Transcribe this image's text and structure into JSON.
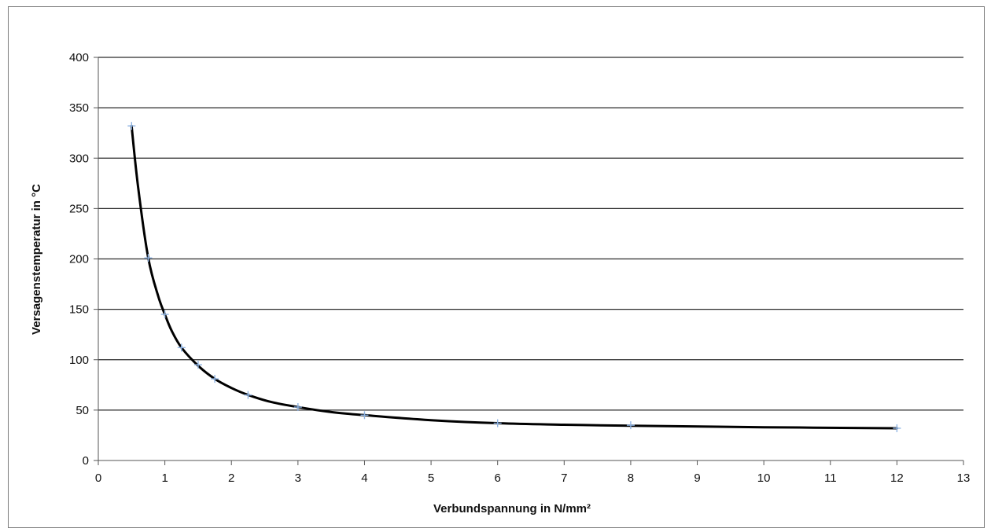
{
  "chart_data": {
    "type": "scatter",
    "title": "",
    "xlabel": "Verbundspannung in N/mm²",
    "ylabel": "Versagenstemperatur in °C",
    "xlim": [
      0,
      13
    ],
    "ylim": [
      0,
      400
    ],
    "x_ticks": [
      0,
      1,
      2,
      3,
      4,
      5,
      6,
      7,
      8,
      9,
      10,
      11,
      12,
      13
    ],
    "y_ticks": [
      0,
      50,
      100,
      150,
      200,
      250,
      300,
      350,
      400
    ],
    "grid": "horizontal",
    "legend": "none",
    "series": [
      {
        "points": [
          {
            "x": 0.5,
            "y": 332
          },
          {
            "x": 0.75,
            "y": 201
          },
          {
            "x": 1.0,
            "y": 145
          },
          {
            "x": 1.25,
            "y": 112
          },
          {
            "x": 1.5,
            "y": 95
          },
          {
            "x": 1.75,
            "y": 81
          },
          {
            "x": 2.25,
            "y": 65
          },
          {
            "x": 3.0,
            "y": 53
          },
          {
            "x": 4.0,
            "y": 45
          },
          {
            "x": 6.0,
            "y": 37
          },
          {
            "x": 8.0,
            "y": 35
          },
          {
            "x": 12.0,
            "y": 32
          }
        ],
        "marker": "+",
        "marker_color": "#8fb4e3"
      }
    ],
    "trendline": {
      "color": "#000000",
      "points": [
        {
          "x": 0.5,
          "y": 332
        },
        {
          "x": 0.6,
          "y": 270
        },
        {
          "x": 0.75,
          "y": 201
        },
        {
          "x": 0.9,
          "y": 163
        },
        {
          "x": 1.0,
          "y": 145
        },
        {
          "x": 1.1,
          "y": 129
        },
        {
          "x": 1.25,
          "y": 112
        },
        {
          "x": 1.5,
          "y": 94
        },
        {
          "x": 1.75,
          "y": 81
        },
        {
          "x": 2.0,
          "y": 72
        },
        {
          "x": 2.25,
          "y": 65
        },
        {
          "x": 2.6,
          "y": 58
        },
        {
          "x": 3.0,
          "y": 53
        },
        {
          "x": 3.5,
          "y": 48
        },
        {
          "x": 4.0,
          "y": 45
        },
        {
          "x": 5.0,
          "y": 40
        },
        {
          "x": 6.0,
          "y": 37
        },
        {
          "x": 7.0,
          "y": 35.5
        },
        {
          "x": 8.0,
          "y": 34.5
        },
        {
          "x": 10.0,
          "y": 33
        },
        {
          "x": 12.0,
          "y": 32
        }
      ]
    }
  }
}
